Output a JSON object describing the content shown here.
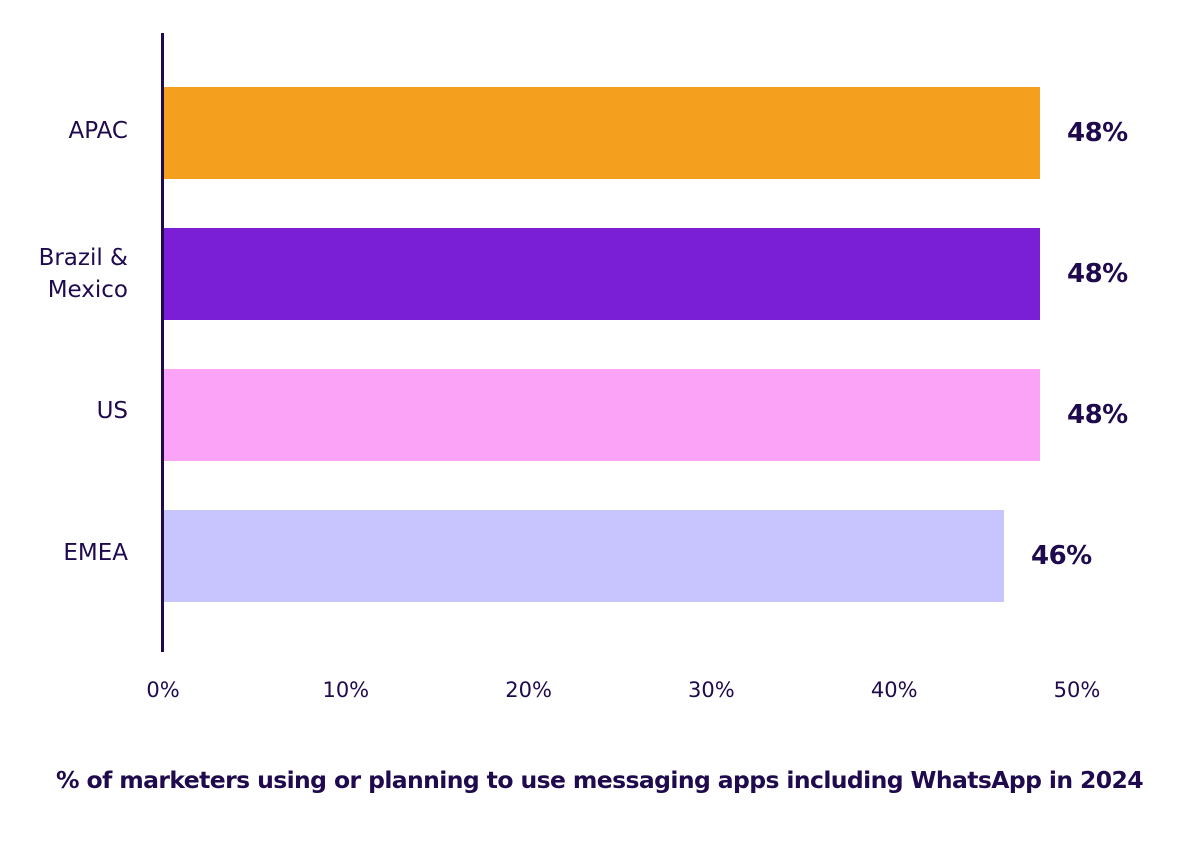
{
  "chart_data": {
    "type": "bar",
    "orientation": "horizontal",
    "title": "",
    "caption": "% of marketers using or planning to use messaging apps including WhatsApp in 2024",
    "xlabel": "",
    "ylabel": "",
    "xlim": [
      0,
      50
    ],
    "grid": false,
    "legend": null,
    "categories": [
      "APAC",
      "Brazil & Mexico",
      "US",
      "EMEA"
    ],
    "values": [
      48,
      48,
      48,
      46
    ],
    "value_labels": [
      "48%",
      "48%",
      "48%",
      "46%"
    ],
    "colors": [
      "#f59f1e",
      "#7b1fd6",
      "#fba3f6",
      "#c8c4fd"
    ],
    "x_ticks": [
      "0%",
      "10%",
      "20%",
      "30%",
      "40%",
      "50%"
    ]
  },
  "labels": {
    "cat0": "APAC",
    "cat1a": "Brazil &",
    "cat1b": "Mexico",
    "cat2": "US",
    "cat3": "EMEA"
  },
  "colors": {
    "text": "#1f0a4d",
    "axis": "#1f0a4d",
    "background": "#ffffff"
  }
}
